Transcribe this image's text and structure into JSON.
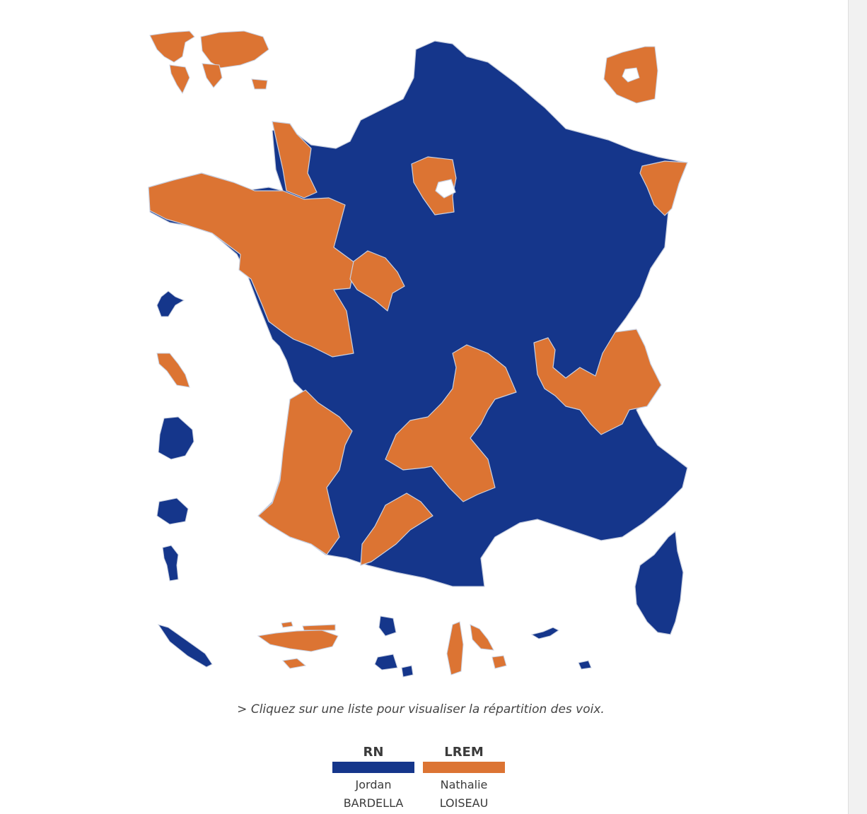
{
  "map": {
    "parties": {
      "RN": {
        "color": "#15368b"
      },
      "LREM": {
        "color": "#dc7433"
      }
    }
  },
  "hint": "> Cliquez sur une liste pour visualiser la répartition des voix.",
  "legend": [
    {
      "party": "RN",
      "first_name": "Jordan",
      "last_name": "BARDELLA",
      "color": "#15368b"
    },
    {
      "party": "LREM",
      "first_name": "Nathalie",
      "last_name": "LOISEAU",
      "color": "#dc7433"
    }
  ]
}
